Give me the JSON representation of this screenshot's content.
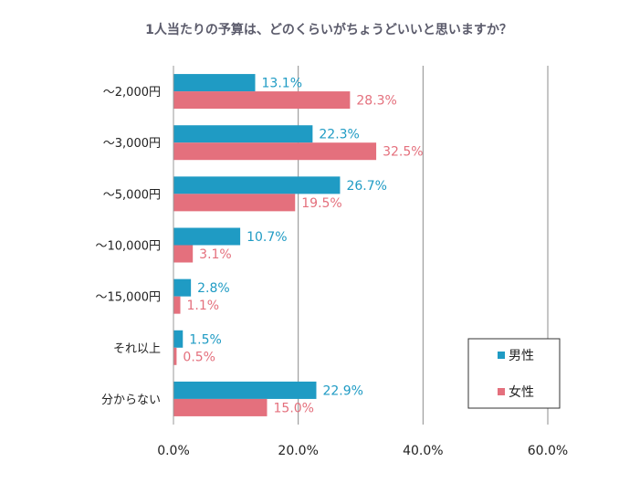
{
  "chart_data": {
    "type": "bar",
    "orientation": "horizontal",
    "title": "1人当たりの予算は、どのくらいがちょうどいいと思いますか？",
    "categories": [
      "～2,000円",
      "～3,000円",
      "～5,000円",
      "～10,000円",
      "～15,000円",
      "それ以上",
      "分からない"
    ],
    "series": [
      {
        "name": "男性",
        "color": "#1f9bc4",
        "label_color": "#1f9bc4",
        "values": [
          13.1,
          22.3,
          26.7,
          10.7,
          2.8,
          1.5,
          22.9
        ],
        "labels": [
          "13.1%",
          "22.3%",
          "26.7%",
          "10.7%",
          "2.8%",
          "1.5%",
          "22.9%"
        ]
      },
      {
        "name": "女性",
        "color": "#e4707d",
        "label_color": "#e4707d",
        "values": [
          28.3,
          32.5,
          19.5,
          3.1,
          1.1,
          0.5,
          15.0
        ],
        "labels": [
          "28.3%",
          "32.5%",
          "19.5%",
          "3.1%",
          "1.1%",
          "0.5%",
          "15.0%"
        ]
      }
    ],
    "xlim": [
      0,
      60
    ],
    "xticks": [
      0,
      20,
      40,
      60
    ],
    "xtick_labels": [
      "0.0%",
      "20.0%",
      "40.0%",
      "60.0%"
    ],
    "grid": true,
    "legend_position": "bottom-right"
  }
}
